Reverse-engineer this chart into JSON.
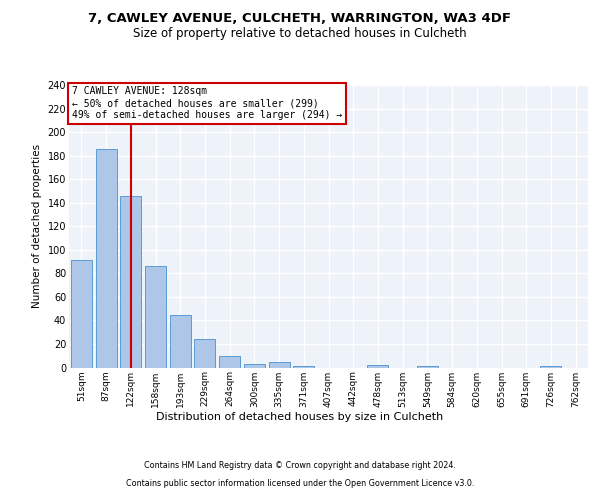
{
  "title1": "7, CAWLEY AVENUE, CULCHETH, WARRINGTON, WA3 4DF",
  "title2": "Size of property relative to detached houses in Culcheth",
  "xlabel": "Distribution of detached houses by size in Culcheth",
  "ylabel": "Number of detached properties",
  "categories": [
    "51sqm",
    "87sqm",
    "122sqm",
    "158sqm",
    "193sqm",
    "229sqm",
    "264sqm",
    "300sqm",
    "335sqm",
    "371sqm",
    "407sqm",
    "442sqm",
    "478sqm",
    "513sqm",
    "549sqm",
    "584sqm",
    "620sqm",
    "655sqm",
    "691sqm",
    "726sqm",
    "762sqm"
  ],
  "values": [
    91,
    186,
    146,
    86,
    45,
    24,
    10,
    3,
    5,
    1,
    0,
    0,
    2,
    0,
    1,
    0,
    0,
    0,
    0,
    1,
    0
  ],
  "bar_color": "#aec6e8",
  "bar_edge_color": "#5b9bd5",
  "vline_x_index": 2,
  "vline_color": "#cc0000",
  "annotation_line1": "7 CAWLEY AVENUE: 128sqm",
  "annotation_line2": "← 50% of detached houses are smaller (299)",
  "annotation_line3": "49% of semi-detached houses are larger (294) →",
  "annotation_box_edgecolor": "#cc0000",
  "ylim": [
    0,
    240
  ],
  "yticks": [
    0,
    20,
    40,
    60,
    80,
    100,
    120,
    140,
    160,
    180,
    200,
    220,
    240
  ],
  "footer1": "Contains HM Land Registry data © Crown copyright and database right 2024.",
  "footer2": "Contains public sector information licensed under the Open Government Licence v3.0.",
  "bg_color": "#eef2f9",
  "grid_color": "#ffffff",
  "title1_fontsize": 9.5,
  "title2_fontsize": 8.5
}
